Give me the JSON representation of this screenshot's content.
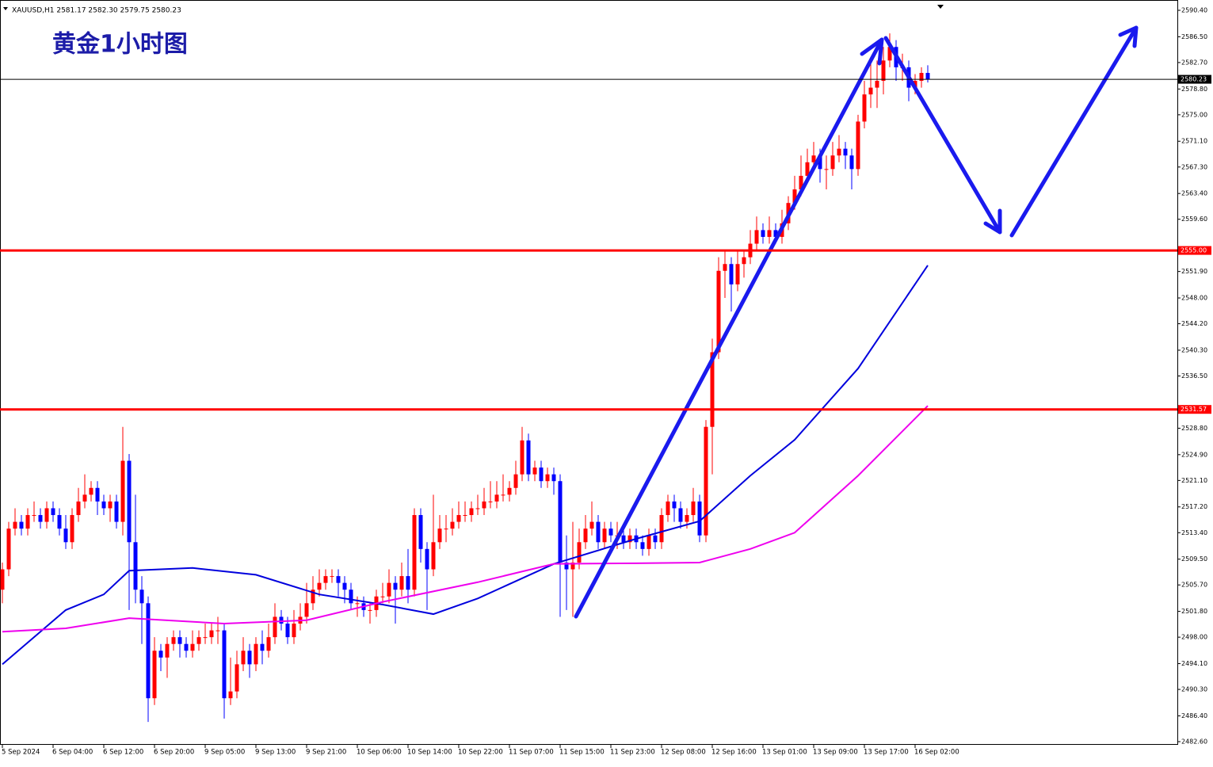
{
  "chart_data": {
    "type": "candlestick",
    "title": "黄金1小时图",
    "header": "XAUUSD,H1  2581.17 2582.30 2579.75 2580.23",
    "up_color": "#ff0000",
    "down_color": "#0000ff",
    "ylim": [
      2482.6,
      2590.4
    ],
    "yticks": [
      {
        "value": 2590.4,
        "label": "2590.40"
      },
      {
        "value": 2586.5,
        "label": "2586.50"
      },
      {
        "value": 2582.7,
        "label": "2582.70"
      },
      {
        "value": 2578.8,
        "label": "2578.80"
      },
      {
        "value": 2575,
        "label": "2575.00"
      },
      {
        "value": 2571.1,
        "label": "2571.10"
      },
      {
        "value": 2567.3,
        "label": "2567.30"
      },
      {
        "value": 2563.4,
        "label": "2563.40"
      },
      {
        "value": 2559.6,
        "label": "2559.60"
      },
      {
        "value": 2551.9,
        "label": "2551.90"
      },
      {
        "value": 2548,
        "label": "2548.00"
      },
      {
        "value": 2544.2,
        "label": "2544.20"
      },
      {
        "value": 2540.3,
        "label": "2540.30"
      },
      {
        "value": 2536.5,
        "label": "2536.50"
      },
      {
        "value": 2528.8,
        "label": "2528.80"
      },
      {
        "value": 2524.9,
        "label": "2524.90"
      },
      {
        "value": 2521.1,
        "label": "2521.10"
      },
      {
        "value": 2517.2,
        "label": "2517.20"
      },
      {
        "value": 2513.4,
        "label": "2513.40"
      },
      {
        "value": 2509.5,
        "label": "2509.50"
      },
      {
        "value": 2505.7,
        "label": "2505.70"
      },
      {
        "value": 2501.8,
        "label": "2501.80"
      },
      {
        "value": 2498,
        "label": "2498.00"
      },
      {
        "value": 2494.1,
        "label": "2494.10"
      },
      {
        "value": 2490.3,
        "label": "2490.30"
      },
      {
        "value": 2486.4,
        "label": "2486.40"
      },
      {
        "value": 2482.6,
        "label": "2482.60"
      }
    ],
    "categories": [
      "5 Sep 2024",
      null,
      null,
      null,
      null,
      null,
      null,
      null,
      "6 Sep 04:00",
      null,
      null,
      null,
      null,
      null,
      null,
      null,
      "6 Sep 12:00",
      null,
      null,
      null,
      null,
      null,
      null,
      null,
      "6 Sep 20:00",
      null,
      null,
      null,
      null,
      null,
      null,
      null,
      "9 Sep 05:00",
      null,
      null,
      null,
      null,
      null,
      null,
      null,
      "9 Sep 13:00",
      null,
      null,
      null,
      null,
      null,
      null,
      null,
      "9 Sep 21:00",
      null,
      null,
      null,
      null,
      null,
      null,
      null,
      "10 Sep 06:00",
      null,
      null,
      null,
      null,
      null,
      null,
      null,
      "10 Sep 14:00",
      null,
      null,
      null,
      null,
      null,
      null,
      null,
      "10 Sep 22:00",
      null,
      null,
      null,
      null,
      null,
      null,
      null,
      "11 Sep 07:00",
      null,
      null,
      null,
      null,
      null,
      null,
      null,
      "11 Sep 15:00",
      null,
      null,
      null,
      null,
      null,
      null,
      null,
      "11 Sep 23:00",
      null,
      null,
      null,
      null,
      null,
      null,
      null,
      "12 Sep 08:00",
      null,
      null,
      null,
      null,
      null,
      null,
      null,
      "12 Sep 16:00",
      null,
      null,
      null,
      null,
      null,
      null,
      null,
      "13 Sep 01:00",
      null,
      null,
      null,
      null,
      null,
      null,
      null,
      "13 Sep 09:00",
      null,
      null,
      null,
      null,
      null,
      null,
      null,
      "13 Sep 17:00",
      null,
      null,
      null,
      null,
      null,
      null,
      null,
      "16 Sep 02:00",
      null,
      null
    ],
    "open": [
      2505,
      2508,
      2514,
      2515,
      2514,
      2516,
      2516,
      2515,
      2517,
      2516,
      2514,
      2512,
      2516,
      2518,
      2519,
      2520,
      2518,
      2517,
      2518,
      2515,
      2524,
      2512,
      2505,
      2503,
      2489,
      2496,
      2495,
      2497,
      2498,
      2497,
      2496,
      2497,
      2498,
      2498,
      2499,
      2499,
      2489,
      2490,
      2494,
      2496,
      2494,
      2497,
      2496,
      2498,
      2501,
      2500,
      2498,
      2500,
      2501,
      2503,
      2505,
      2506,
      2507,
      2507,
      2506,
      2505,
      2503,
      2503,
      2502,
      2502,
      2504,
      2504,
      2506,
      2505,
      2507,
      2505,
      2516,
      2511,
      2508,
      2512,
      2514,
      2514,
      2515,
      2516,
      2516,
      2517,
      2517,
      2518,
      2518,
      2519,
      2519,
      2520,
      2522,
      2527,
      2522,
      2523,
      2521,
      2522,
      2521,
      2509,
      2508,
      2509,
      2512,
      2514,
      2515,
      2512,
      2514,
      2513,
      2513,
      2512,
      2513,
      2512,
      2511,
      2513,
      2512,
      2516,
      2518,
      2517,
      2515,
      2516,
      2518,
      2513,
      2529,
      2540,
      2552,
      2553,
      2550,
      2553,
      2554,
      2556,
      2558,
      2557,
      2558,
      2557,
      2559,
      2562,
      2564,
      2566,
      2568,
      2569,
      2567,
      2567,
      2569,
      2570,
      2569,
      2567,
      2574,
      2578,
      2579,
      2580,
      2583,
      2585,
      2582,
      2582,
      2579,
      2580,
      2581.17
    ],
    "high": [
      2509,
      2515,
      2517,
      2516,
      2517,
      2518,
      2517,
      2518,
      2518,
      2517,
      2516,
      2517,
      2520,
      2522,
      2521,
      2521,
      2519,
      2519,
      2519,
      2529,
      2525,
      2519,
      2507,
      2504,
      2498,
      2497,
      2498,
      2499,
      2499,
      2498,
      2499,
      2499,
      2500,
      2500,
      2501,
      2500,
      2495,
      2496,
      2498,
      2497,
      2498,
      2499,
      2500,
      2503,
      2502,
      2501,
      2502,
      2503,
      2506,
      2507,
      2508,
      2508,
      2508,
      2508,
      2507,
      2506,
      2504,
      2504,
      2503,
      2505,
      2506,
      2508,
      2507,
      2509,
      2511,
      2517,
      2517,
      2512,
      2519,
      2516,
      2516,
      2517,
      2518,
      2518,
      2518,
      2519,
      2520,
      2521,
      2521,
      2522,
      2521,
      2524,
      2529,
      2528,
      2524,
      2524,
      2523,
      2523,
      2522,
      2513,
      2515,
      2514,
      2516,
      2518,
      2516,
      2515,
      2515,
      2515,
      2514,
      2514,
      2514,
      2513,
      2514,
      2514,
      2517,
      2519,
      2519,
      2518,
      2517,
      2520,
      2519,
      2530,
      2542,
      2554,
      2555,
      2554,
      2555,
      2555,
      2558,
      2560,
      2559,
      2560,
      2559,
      2561,
      2563,
      2566,
      2569,
      2570,
      2571,
      2570,
      2569,
      2571,
      2572,
      2571,
      2570,
      2575,
      2580,
      2583,
      2583,
      2585,
      2587,
      2586,
      2584,
      2583,
      2581,
      2582,
      2582.3
    ],
    "low": [
      2503,
      2507,
      2513,
      2513,
      2513,
      2515,
      2514,
      2514,
      2515,
      2513,
      2511,
      2511,
      2515,
      2517,
      2518,
      2516,
      2516,
      2515,
      2514,
      2513,
      2502,
      2503,
      2497,
      2485.5,
      2488,
      2493,
      2492,
      2496,
      2495,
      2495,
      2495,
      2496,
      2497,
      2497,
      2497,
      2486,
      2488,
      2489,
      2493,
      2492,
      2493,
      2494,
      2495,
      2497,
      2499,
      2497,
      2497,
      2499,
      2500,
      2502,
      2504,
      2505,
      2506,
      2504,
      2503,
      2502,
      2501,
      2501,
      2500,
      2501,
      2503,
      2503,
      2500,
      2504,
      2503,
      2504,
      2509,
      2502,
      2507,
      2511,
      2512,
      2513,
      2514,
      2515,
      2515,
      2516,
      2516,
      2517,
      2517,
      2518,
      2518,
      2519,
      2521,
      2521,
      2521,
      2520,
      2520,
      2519,
      2501,
      2502,
      2501,
      2508,
      2511,
      2513,
      2511,
      2511,
      2512,
      2511,
      2511,
      2511,
      2511,
      2510,
      2510,
      2511,
      2511,
      2515,
      2515,
      2514,
      2514,
      2515,
      2512,
      2512,
      2522,
      2539,
      2548,
      2546,
      2549,
      2551,
      2553,
      2555,
      2556,
      2556,
      2556,
      2556,
      2558,
      2561,
      2563,
      2565,
      2567,
      2565,
      2564,
      2566,
      2568,
      2567,
      2564,
      2566,
      2573,
      2576,
      2576,
      2578,
      2582,
      2580,
      2580,
      2577,
      2578,
      2579,
      2579.75
    ],
    "close": [
      2508,
      2514,
      2515,
      2514,
      2516,
      2516,
      2515,
      2517,
      2516,
      2514,
      2512,
      2516,
      2518,
      2519,
      2520,
      2518,
      2517,
      2518,
      2515,
      2524,
      2512,
      2505,
      2503,
      2489,
      2496,
      2495,
      2497,
      2498,
      2497,
      2496,
      2497,
      2498,
      2498,
      2499,
      2499,
      2489,
      2490,
      2494,
      2496,
      2494,
      2497,
      2496,
      2498,
      2501,
      2500,
      2498,
      2500,
      2501,
      2503,
      2505,
      2506,
      2507,
      2507,
      2506,
      2505,
      2503,
      2503,
      2502,
      2502,
      2504,
      2504,
      2506,
      2505,
      2507,
      2505,
      2516,
      2511,
      2508,
      2512,
      2514,
      2514,
      2515,
      2516,
      2516,
      2517,
      2517,
      2518,
      2518,
      2519,
      2519,
      2520,
      2522,
      2527,
      2522,
      2523,
      2521,
      2522,
      2521,
      2509,
      2508,
      2509,
      2512,
      2514,
      2515,
      2512,
      2514,
      2513,
      2513,
      2512,
      2513,
      2512,
      2511,
      2513,
      2512,
      2516,
      2518,
      2517,
      2515,
      2516,
      2518,
      2513,
      2529,
      2540,
      2552,
      2553,
      2550,
      2553,
      2554,
      2556,
      2558,
      2557,
      2558,
      2557,
      2559,
      2562,
      2564,
      2566,
      2568,
      2569,
      2567,
      2567,
      2569,
      2570,
      2569,
      2567,
      2574,
      2578,
      2579,
      2580,
      2583,
      2585,
      2582,
      2582,
      2579,
      2580,
      2581.17,
      2580.23
    ],
    "lines": [
      {
        "color": "#0000dd",
        "x": [
          0,
          10,
          16,
          20,
          30,
          40,
          50,
          60,
          68,
          75,
          87,
          100,
          110,
          118,
          125,
          135,
          146
        ],
        "values": [
          2494,
          2502,
          2504.3,
          2507.8,
          2508.2,
          2507.2,
          2504.3,
          2502.8,
          2501.4,
          2503.7,
          2508.8,
          2512.5,
          2515.1,
          2521.8,
          2527.1,
          2537.6,
          2552.8
        ]
      },
      {
        "color": "#ee00ee",
        "x": [
          0,
          10,
          20,
          35,
          48,
          60,
          75,
          87,
          100,
          110,
          118,
          125,
          135,
          146
        ],
        "values": [
          2498.8,
          2499.3,
          2500.8,
          2500,
          2500.5,
          2503.2,
          2506.1,
          2508.8,
          2508.9,
          2509,
          2511,
          2513.4,
          2521.8,
          2532.1
        ]
      }
    ],
    "levels": [
      {
        "value": 2555,
        "label": "2555.00",
        "color": "#ff0000"
      },
      {
        "value": 2531.57,
        "label": "2531.57",
        "color": "#ff0000"
      },
      {
        "value": 2580.23,
        "label": "2580.23",
        "color": "#000000"
      }
    ]
  }
}
